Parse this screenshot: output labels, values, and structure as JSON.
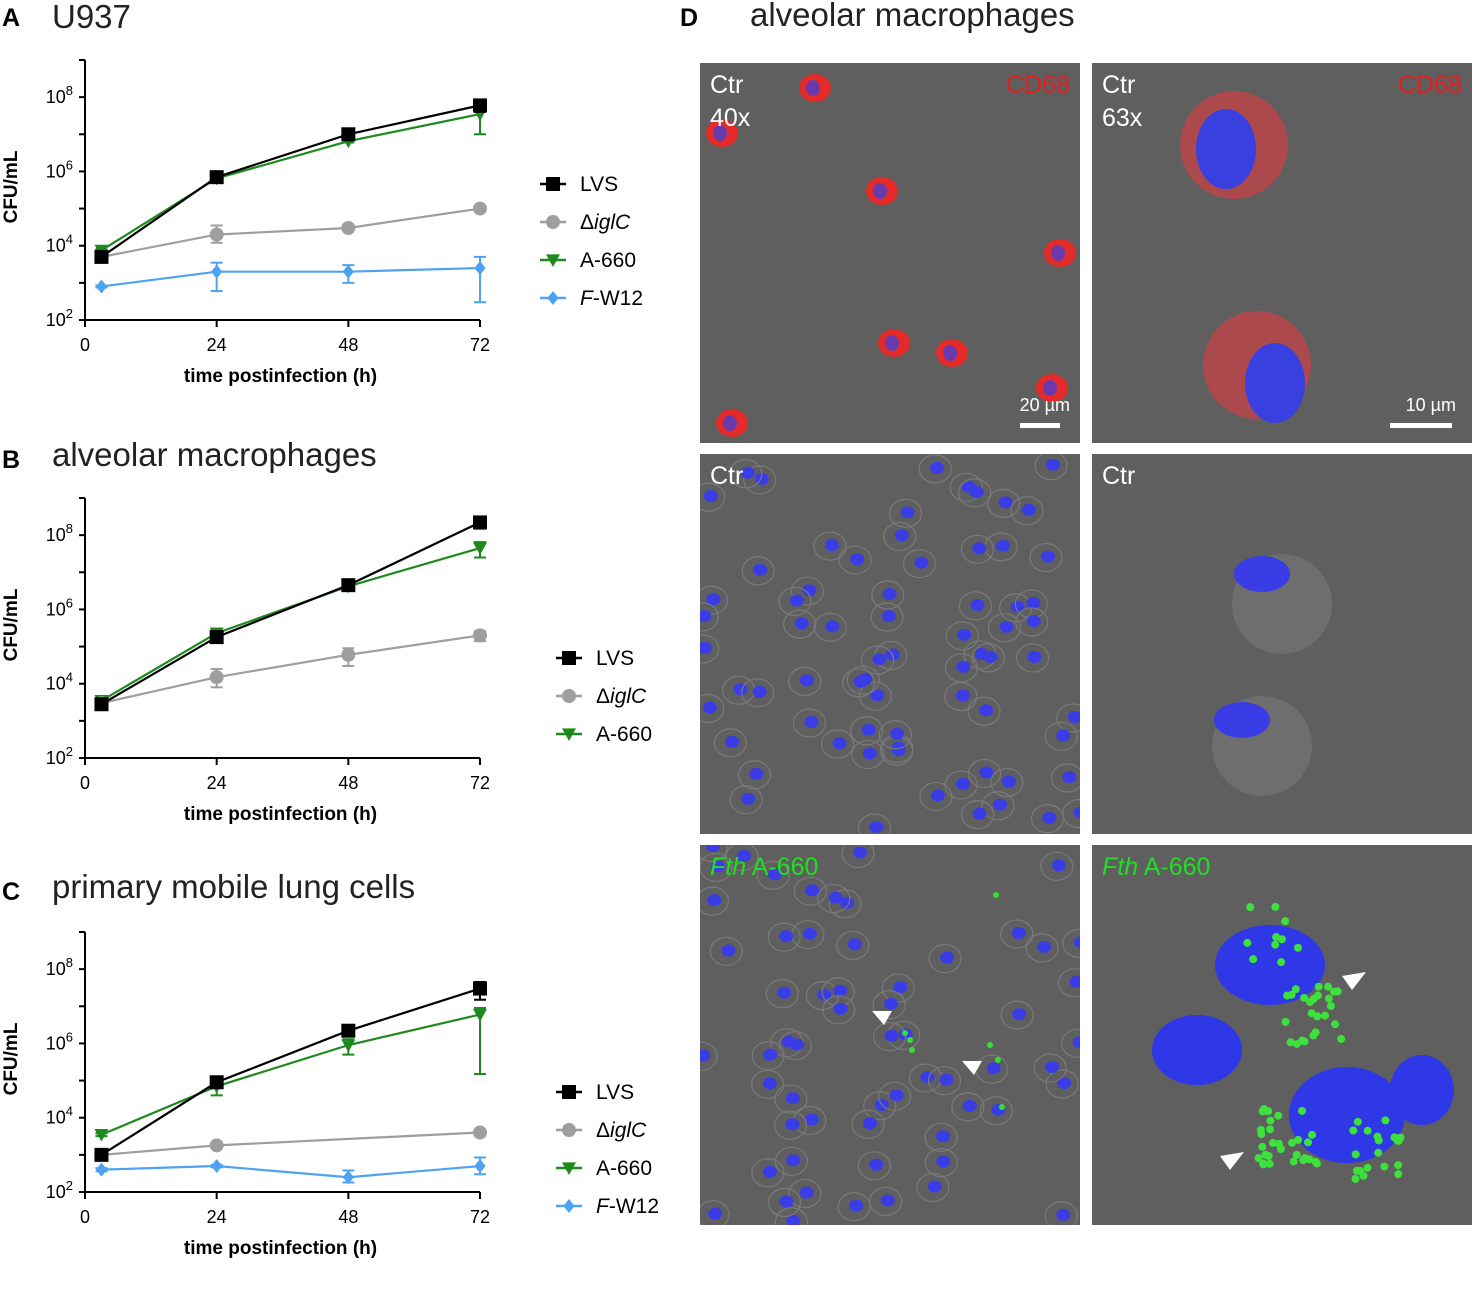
{
  "panels": {
    "A": {
      "letter": "A",
      "title": "U937"
    },
    "B": {
      "letter": "B",
      "title": "alveolar macrophages"
    },
    "C": {
      "letter": "C",
      "title": "primary mobile lung cells"
    },
    "D": {
      "letter": "D",
      "title": "alveolar macrophages"
    }
  },
  "colors": {
    "LVS": "#000000",
    "iglC": "#9e9e9e",
    "A660": "#1e8a1e",
    "FW12": "#4da3f2"
  },
  "chart_data": [
    {
      "type": "line",
      "panel": "A",
      "title": "U937",
      "xlabel": "time postinfection (h)",
      "ylabel": "CFU/mL",
      "x_ticks": [
        "0",
        "24",
        "48",
        "72"
      ],
      "y_ticks": [
        {
          "exp": 2,
          "base": "10",
          "sup": "2"
        },
        {
          "exp": 4,
          "base": "10",
          "sup": "4"
        },
        {
          "exp": 6,
          "base": "10",
          "sup": "6"
        },
        {
          "exp": 8,
          "base": "10",
          "sup": "8"
        }
      ],
      "y_scale": "log",
      "xlim": [
        0,
        72
      ],
      "ylim_exp": [
        2,
        9
      ],
      "legend_position": "right",
      "series": [
        {
          "name": "LVS",
          "color": "#000000",
          "marker": "square",
          "x": [
            3,
            24,
            48,
            72
          ],
          "y": [
            5000,
            700000,
            10000000,
            60000000
          ],
          "err_low": [
            4500,
            650000,
            9000000,
            40000000
          ],
          "err_high": [
            5500,
            750000,
            11000000,
            80000000
          ]
        },
        {
          "name": "ΔiglC",
          "color": "#9e9e9e",
          "marker": "circle",
          "x": [
            3,
            24,
            48,
            72
          ],
          "y": [
            5000,
            20000,
            30000,
            100000
          ],
          "err_low": [
            4500,
            12000,
            27000,
            95000
          ],
          "err_high": [
            5500,
            35000,
            33000,
            105000
          ]
        },
        {
          "name": "A-660",
          "color": "#1e8a1e",
          "marker": "triangle-down",
          "x": [
            3,
            24,
            48,
            72
          ],
          "y": [
            7500,
            650000,
            6500000,
            35000000
          ],
          "err_low": [
            7000,
            600000,
            6000000,
            10000000
          ],
          "err_high": [
            8000,
            700000,
            7000000,
            50000000
          ]
        },
        {
          "name": "F-W12",
          "color": "#4da3f2",
          "marker": "diamond",
          "x": [
            3,
            24,
            48,
            72
          ],
          "y": [
            800,
            2000,
            2000,
            2500
          ],
          "err_low": [
            750,
            600,
            1000,
            300
          ],
          "err_high": [
            850,
            3500,
            3000,
            5000
          ]
        }
      ]
    },
    {
      "type": "line",
      "panel": "B",
      "title": "alveolar macrophages",
      "xlabel": "time postinfection (h)",
      "ylabel": "CFU/mL",
      "x_ticks": [
        "0",
        "24",
        "48",
        "72"
      ],
      "y_ticks": [
        {
          "exp": 2,
          "base": "10",
          "sup": "2"
        },
        {
          "exp": 4,
          "base": "10",
          "sup": "4"
        },
        {
          "exp": 6,
          "base": "10",
          "sup": "6"
        },
        {
          "exp": 8,
          "base": "10",
          "sup": "8"
        }
      ],
      "y_scale": "log",
      "xlim": [
        0,
        72
      ],
      "ylim_exp": [
        2,
        9
      ],
      "legend_position": "right",
      "series": [
        {
          "name": "LVS",
          "color": "#000000",
          "marker": "square",
          "x": [
            3,
            24,
            48,
            72
          ],
          "y": [
            2800,
            180000,
            4500000,
            220000000
          ],
          "err_low": [
            2500,
            160000,
            4000000,
            150000000
          ],
          "err_high": [
            3100,
            200000,
            5000000,
            280000000
          ]
        },
        {
          "name": "ΔiglC",
          "color": "#9e9e9e",
          "marker": "circle",
          "x": [
            3,
            24,
            48,
            72
          ],
          "y": [
            3000,
            15000,
            60000,
            200000
          ],
          "err_low": [
            2700,
            8000,
            30000,
            140000
          ],
          "err_high": [
            3300,
            25000,
            90000,
            260000
          ]
        },
        {
          "name": "A-660",
          "color": "#1e8a1e",
          "marker": "triangle-down",
          "x": [
            3,
            24,
            48,
            72
          ],
          "y": [
            3500,
            230000,
            4200000,
            45000000
          ],
          "err_low": [
            3200,
            210000,
            3800000,
            25000000
          ],
          "err_high": [
            3800,
            250000,
            4600000,
            65000000
          ]
        }
      ]
    },
    {
      "type": "line",
      "panel": "C",
      "title": "primary mobile lung cells",
      "xlabel": "time postinfection (h)",
      "ylabel": "CFU/mL",
      "x_ticks": [
        "0",
        "24",
        "48",
        "72"
      ],
      "y_ticks": [
        {
          "exp": 2,
          "base": "10",
          "sup": "2"
        },
        {
          "exp": 4,
          "base": "10",
          "sup": "4"
        },
        {
          "exp": 6,
          "base": "10",
          "sup": "6"
        },
        {
          "exp": 8,
          "base": "10",
          "sup": "8"
        }
      ],
      "y_scale": "log",
      "xlim": [
        0,
        72
      ],
      "ylim_exp": [
        2,
        9
      ],
      "legend_position": "right",
      "series": [
        {
          "name": "LVS",
          "color": "#000000",
          "marker": "square",
          "x": [
            3,
            24,
            48,
            72
          ],
          "y": [
            1000,
            90000,
            2200000,
            30000000
          ],
          "err_low": [
            900,
            80000,
            2000000,
            15000000
          ],
          "err_high": [
            1100,
            100000,
            2400000,
            45000000
          ]
        },
        {
          "name": "ΔiglC",
          "color": "#9e9e9e",
          "marker": "circle",
          "x": [
            3,
            24,
            48,
            72
          ],
          "y": [
            1000,
            1800,
            null,
            4000
          ],
          "err_low": [
            900,
            1600,
            null,
            3600
          ],
          "err_high": [
            1100,
            2000,
            null,
            4400
          ]
        },
        {
          "name": "A-660",
          "color": "#1e8a1e",
          "marker": "triangle-down",
          "x": [
            3,
            24,
            48,
            72
          ],
          "y": [
            3500,
            70000,
            900000,
            6000000
          ],
          "err_low": [
            3200,
            40000,
            500000,
            150000
          ],
          "err_high": [
            3800,
            100000,
            1300000,
            9000000
          ]
        },
        {
          "name": "F-W12",
          "color": "#4da3f2",
          "marker": "diamond",
          "x": [
            3,
            24,
            48,
            72
          ],
          "y": [
            400,
            500,
            250,
            500
          ],
          "err_low": [
            360,
            460,
            180,
            300
          ],
          "err_high": [
            440,
            540,
            380,
            850
          ]
        }
      ]
    }
  ],
  "micrographs": [
    {
      "id": "d-ctr-40x-cd68",
      "labels": [
        {
          "text": "Ctr",
          "color": "#ffffff"
        },
        {
          "text": "40x",
          "color": "#ffffff"
        }
      ],
      "right_label": {
        "text": "CD68",
        "color": "#e02020"
      },
      "scale_text": "20 µm"
    },
    {
      "id": "d-ctr-63x-cd68",
      "labels": [
        {
          "text": "Ctr",
          "color": "#ffffff"
        },
        {
          "text": "63x",
          "color": "#ffffff"
        }
      ],
      "right_label": {
        "text": "CD68",
        "color": "#e02020"
      },
      "scale_text": "10 µm"
    },
    {
      "id": "d-ctr-40x",
      "labels": [
        {
          "text": "Ctr",
          "color": "#ffffff"
        }
      ],
      "right_label": null,
      "scale_text": null
    },
    {
      "id": "d-ctr-63x",
      "labels": [
        {
          "text": "Ctr",
          "color": "#ffffff"
        }
      ],
      "right_label": null,
      "scale_text": null
    },
    {
      "id": "d-fth-40x",
      "labels": [
        {
          "text": "Fth A-660",
          "color": "#22dd22"
        }
      ],
      "right_label": null,
      "scale_text": null
    },
    {
      "id": "d-fth-63x",
      "labels": [
        {
          "text": "Fth A-660",
          "color": "#22dd22"
        }
      ],
      "right_label": null,
      "scale_text": null
    }
  ]
}
